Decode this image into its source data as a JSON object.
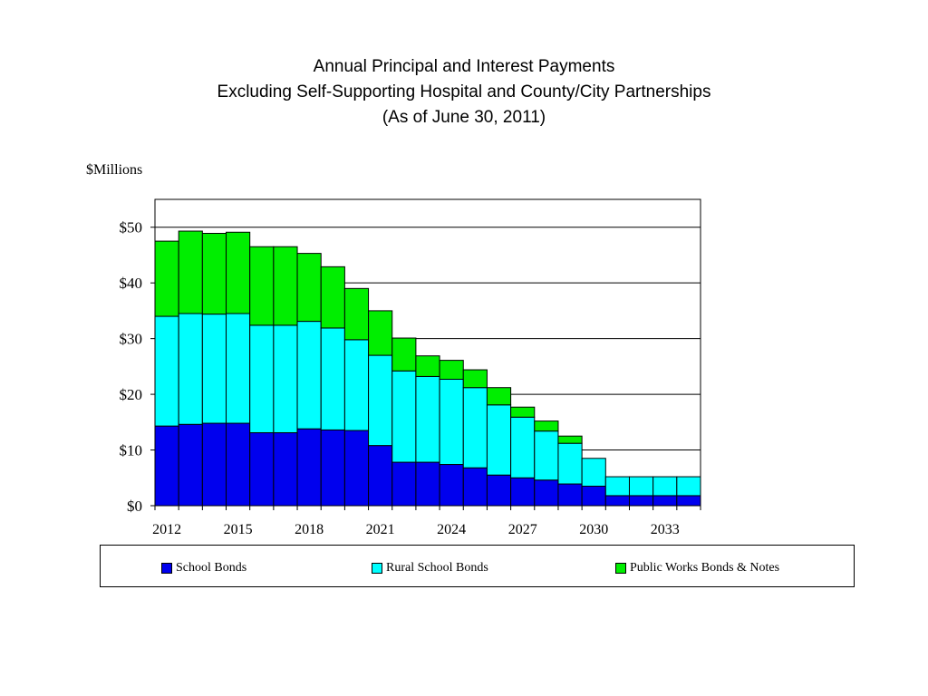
{
  "title_lines": [
    "Annual Principal and Interest Payments",
    "Excluding Self-Supporting Hospital and County/City Partnerships",
    "(As of June 30, 2011)"
  ],
  "units_label": "$Millions",
  "colors": {
    "school": "#0000ee",
    "rural": "#00ffff",
    "public_works": "#00ee00",
    "gridline": "#000000",
    "bar_outline": "#000000"
  },
  "chart_data": {
    "type": "bar",
    "stacked": true,
    "title": "Annual Principal and Interest Payments Excluding Self-Supporting Hospital and County/City Partnerships (As of June 30, 2011)",
    "ylabel": "$Millions",
    "xlabel": "",
    "ylim": [
      0,
      55
    ],
    "yticks": [
      0,
      10,
      20,
      30,
      40,
      50
    ],
    "ytick_labels": [
      "$0",
      "$10",
      "$20",
      "$30",
      "$40",
      "$50"
    ],
    "xtick_labels": [
      "2012",
      "2015",
      "2018",
      "2021",
      "2024",
      "2027",
      "2030",
      "2033"
    ],
    "grid": true,
    "legend_position": "bottom",
    "categories": [
      "2012",
      "2013",
      "2014",
      "2015",
      "2016",
      "2017",
      "2018",
      "2019",
      "2020",
      "2021",
      "2022",
      "2023",
      "2024",
      "2025",
      "2026",
      "2027",
      "2028",
      "2029",
      "2030",
      "2031",
      "2032",
      "2033",
      "2034"
    ],
    "series": [
      {
        "name": "School Bonds",
        "values": [
          14.3,
          14.6,
          14.8,
          14.8,
          13.1,
          13.1,
          13.8,
          13.6,
          13.5,
          10.8,
          7.8,
          7.8,
          7.4,
          6.8,
          5.5,
          5.0,
          4.6,
          3.9,
          3.5,
          1.8,
          1.8,
          1.8,
          1.8
        ]
      },
      {
        "name": "Rural School Bonds",
        "values": [
          19.7,
          19.9,
          19.6,
          19.7,
          19.3,
          19.3,
          19.3,
          18.3,
          16.3,
          16.2,
          16.4,
          15.4,
          15.3,
          14.4,
          12.6,
          10.9,
          8.8,
          7.3,
          5.0,
          3.4,
          3.4,
          3.4,
          3.4
        ]
      },
      {
        "name": "Public Works Bonds & Notes",
        "values": [
          13.5,
          14.8,
          14.5,
          14.6,
          14.1,
          14.1,
          12.2,
          11.0,
          9.2,
          8.0,
          5.9,
          3.7,
          3.4,
          3.2,
          3.1,
          1.8,
          1.8,
          1.3,
          0,
          0,
          0,
          0,
          0
        ]
      }
    ]
  }
}
